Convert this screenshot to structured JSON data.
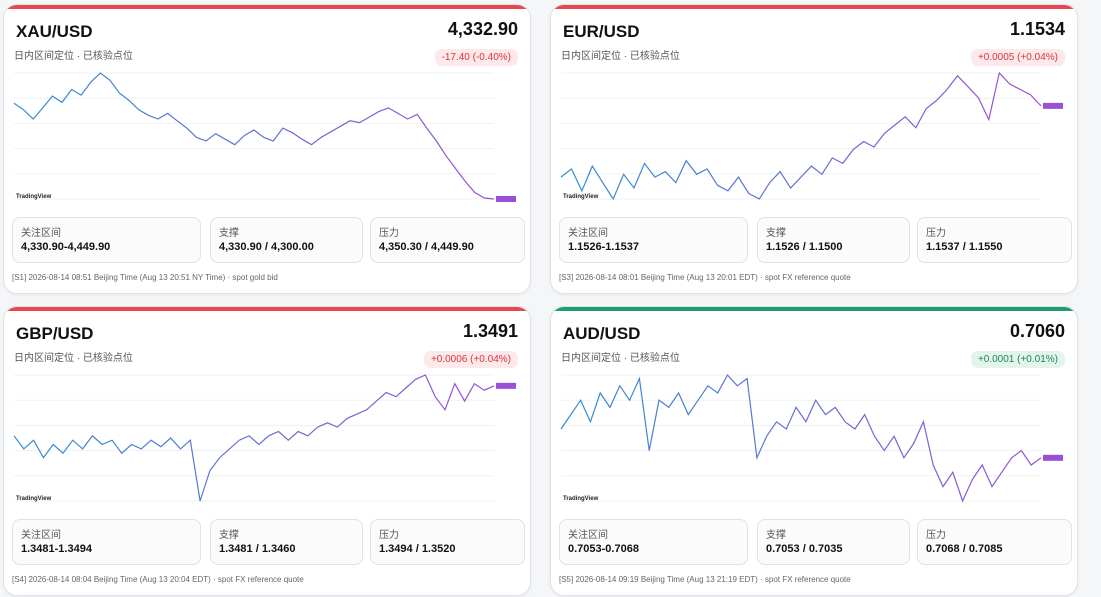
{
  "colors": {
    "up": "#1e8a55",
    "down": "#d9363e",
    "bar_red": "#e8474f",
    "bar_green": "#1f9a73",
    "line_blue": "#2f8fd3",
    "line_purple": "#9b4fd6"
  },
  "cards": [
    {
      "pair": "XAU/USD",
      "price": "4,332.90",
      "subtitle": "日内区间定位 · 已核验点位",
      "change": "-17.40 (-0.40%)",
      "direction": "down",
      "bar": "red",
      "chart_logo": "TradingView",
      "boxes": [
        {
          "label": "关注区间",
          "value": "4,330.90-4,449.90"
        },
        {
          "label": "支撑",
          "value": "4,330.90 / 4,300.00"
        },
        {
          "label": "压力",
          "value": "4,350.30 / 4,449.90"
        }
      ],
      "footer": "[S1] 2026-08-14 08:51 Beijing Time (Aug 13 20:51 NY Time) · spot gold bid",
      "chart_data": {
        "type": "line",
        "y": [
          4437,
          4430,
          4420,
          4432,
          4445,
          4438,
          4452,
          4446,
          4460,
          4470,
          4462,
          4448,
          4440,
          4430,
          4424,
          4420,
          4426,
          4418,
          4410,
          4400,
          4396,
          4404,
          4398,
          4392,
          4402,
          4408,
          4400,
          4396,
          4410,
          4405,
          4398,
          4392,
          4400,
          4406,
          4412,
          4418,
          4416,
          4422,
          4428,
          4432,
          4426,
          4420,
          4425,
          4410,
          4396,
          4380,
          4366,
          4352,
          4340,
          4334,
          4332.9
        ]
      }
    },
    {
      "pair": "EUR/USD",
      "price": "1.1534",
      "subtitle": "日内区间定位 · 已核验点位",
      "change": "+0.0005 (+0.04%)",
      "direction": "down",
      "bar": "red",
      "chart_logo": "TradingView",
      "boxes": [
        {
          "label": "关注区间",
          "value": "1.1526-1.1537"
        },
        {
          "label": "支撑",
          "value": "1.1526 / 1.1500"
        },
        {
          "label": "压力",
          "value": "1.1537 / 1.1550"
        }
      ],
      "footer": "[S3] 2026-08-14 08:01 Beijing Time (Aug 13 20:01 EDT) · spot FX reference quote",
      "chart_data": {
        "type": "line",
        "y": [
          1.1508,
          1.1511,
          1.1503,
          1.1512,
          1.1506,
          1.15,
          1.1509,
          1.1504,
          1.1513,
          1.1508,
          1.151,
          1.1506,
          1.1514,
          1.1509,
          1.1511,
          1.1505,
          1.1503,
          1.1508,
          1.1502,
          1.15,
          1.1506,
          1.151,
          1.1504,
          1.1508,
          1.1512,
          1.1509,
          1.1515,
          1.1513,
          1.1518,
          1.1521,
          1.1519,
          1.1524,
          1.1527,
          1.153,
          1.1526,
          1.1533,
          1.1536,
          1.154,
          1.1545,
          1.1541,
          1.1537,
          1.1529,
          1.1546,
          1.1542,
          1.154,
          1.1538,
          1.1534
        ]
      }
    },
    {
      "pair": "GBP/USD",
      "price": "1.3491",
      "subtitle": "日内区间定位 · 已核验点位",
      "change": "+0.0006 (+0.04%)",
      "direction": "down",
      "bar": "red",
      "chart_logo": "TradingView",
      "boxes": [
        {
          "label": "关注区间",
          "value": "1.3481-1.3494"
        },
        {
          "label": "支撑",
          "value": "1.3481 / 1.3460"
        },
        {
          "label": "压力",
          "value": "1.3494 / 1.3520"
        }
      ],
      "footer": "[S4] 2026-08-14 08:04 Beijing Time (Aug 13 20:04 EDT) · spot FX reference quote",
      "chart_data": {
        "type": "line",
        "y": [
          1.3468,
          1.3462,
          1.3466,
          1.3458,
          1.3464,
          1.346,
          1.3466,
          1.3462,
          1.3468,
          1.3464,
          1.3466,
          1.346,
          1.3464,
          1.3462,
          1.3466,
          1.3463,
          1.3467,
          1.3462,
          1.3466,
          1.3438,
          1.3452,
          1.3458,
          1.3462,
          1.3466,
          1.3468,
          1.3464,
          1.3468,
          1.347,
          1.3466,
          1.347,
          1.3468,
          1.3472,
          1.3474,
          1.3472,
          1.3476,
          1.3478,
          1.348,
          1.3484,
          1.3488,
          1.3486,
          1.349,
          1.3494,
          1.3496,
          1.3486,
          1.348,
          1.3492,
          1.3484,
          1.3492,
          1.3489,
          1.3491
        ]
      }
    },
    {
      "pair": "AUD/USD",
      "price": "0.7060",
      "subtitle": "日内区间定位 · 已核验点位",
      "change": "+0.0001 (+0.01%)",
      "direction": "up",
      "bar": "green",
      "chart_logo": "TradingView",
      "boxes": [
        {
          "label": "关注区间",
          "value": "0.7053-0.7068"
        },
        {
          "label": "支撑",
          "value": "0.7053 / 0.7035"
        },
        {
          "label": "压力",
          "value": "0.7068 / 0.7085"
        }
      ],
      "footer": "[S5] 2026-08-14 09:19 Beijing Time (Aug 13 21:19 EDT) · spot FX reference quote",
      "chart_data": {
        "type": "line",
        "y": [
          0.7068,
          0.7072,
          0.7076,
          0.707,
          0.7078,
          0.7074,
          0.708,
          0.7076,
          0.7082,
          0.7062,
          0.7076,
          0.7074,
          0.7078,
          0.7072,
          0.7076,
          0.708,
          0.7078,
          0.7083,
          0.708,
          0.7082,
          0.706,
          0.7066,
          0.707,
          0.7068,
          0.7074,
          0.707,
          0.7076,
          0.7072,
          0.7074,
          0.707,
          0.7068,
          0.7072,
          0.7066,
          0.7062,
          0.7066,
          0.706,
          0.7064,
          0.707,
          0.7058,
          0.7052,
          0.7056,
          0.7048,
          0.7054,
          0.7058,
          0.7052,
          0.7056,
          0.706,
          0.7062,
          0.7058,
          0.706
        ]
      }
    }
  ]
}
